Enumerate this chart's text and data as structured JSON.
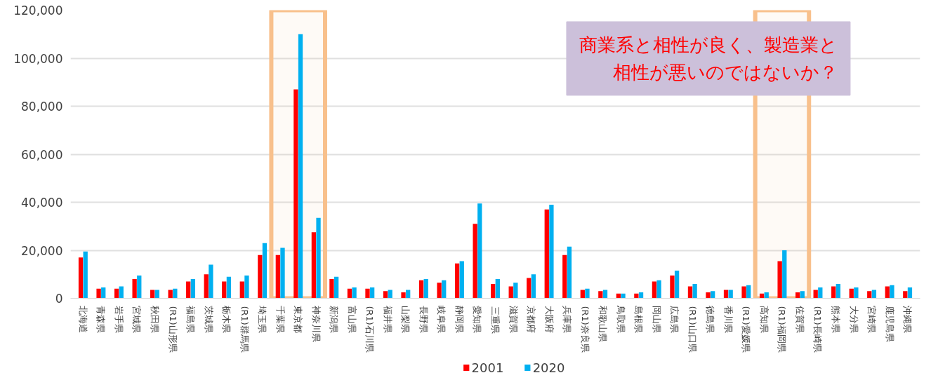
{
  "chart_data": {
    "type": "bar",
    "categories": [
      "北海道",
      "青森県",
      "岩手県",
      "宮城県",
      "秋田県",
      "(R1)山形県",
      "福島県",
      "茨城県",
      "栃木県",
      "(R1)群馬県",
      "埼玉県",
      "千葉県",
      "東京都",
      "神奈川県",
      "新潟県",
      "富山県",
      "(R1)石川県",
      "福井県",
      "山梨県",
      "長野県",
      "岐阜県",
      "静岡県",
      "愛知県",
      "三重県",
      "滋賀県",
      "京都府",
      "大阪府",
      "兵庫県",
      "(R1)奈良県",
      "和歌山県",
      "鳥取県",
      "島根県",
      "岡山県",
      "広島県",
      "(R1)山口県",
      "徳島県",
      "香川県",
      "(R1)愛媛県",
      "高知県",
      "(R1)福岡県",
      "佐賀県",
      "(R1)長崎県",
      "熊本県",
      "大分県",
      "宮崎県",
      "鹿児島県",
      "沖縄県"
    ],
    "series": [
      {
        "name": "2001",
        "color": "#ff0000",
        "values": [
          17000,
          4000,
          4000,
          8000,
          3500,
          3500,
          7000,
          10000,
          7000,
          7000,
          18000,
          18000,
          87000,
          27500,
          8000,
          4000,
          4000,
          3000,
          2500,
          7500,
          6500,
          14500,
          31000,
          6000,
          5000,
          8500,
          37000,
          18000,
          3500,
          3000,
          2000,
          2000,
          7000,
          9500,
          5000,
          2500,
          3500,
          5000,
          2000,
          15500,
          2500,
          3500,
          5000,
          4000,
          3000,
          5000,
          3000
        ]
      },
      {
        "name": "2020",
        "color": "#00b0f0",
        "values": [
          19500,
          4500,
          5000,
          9500,
          3500,
          4000,
          8000,
          14000,
          9000,
          9500,
          23000,
          21000,
          110000,
          33500,
          9000,
          4500,
          4500,
          3500,
          3500,
          8000,
          7500,
          15500,
          39500,
          8000,
          6500,
          10000,
          39000,
          21500,
          4000,
          3500,
          2000,
          2500,
          7500,
          11500,
          6000,
          3000,
          3500,
          5500,
          2500,
          20000,
          3000,
          4500,
          6000,
          4500,
          3500,
          5500,
          4500
        ]
      }
    ],
    "ylim": [
      0,
      120000
    ],
    "yticks": [
      {
        "value": 0,
        "label": "0"
      },
      {
        "value": 20000,
        "label": "20,000"
      },
      {
        "value": 40000,
        "label": "40,000"
      },
      {
        "value": 60000,
        "label": "60,000"
      },
      {
        "value": 80000,
        "label": "80,000"
      },
      {
        "value": 100000,
        "label": "100,000"
      },
      {
        "value": 120000,
        "label": "120,000"
      }
    ],
    "grid": "y",
    "legend": "bottom",
    "bands": [
      {
        "axis": "x",
        "from": "千葉県",
        "to": "神奈川県",
        "color": "#f8c08c"
      },
      {
        "axis": "x",
        "from": "高知県",
        "to": "佐賀県",
        "color": "#f8c08c"
      }
    ],
    "annotations": [
      "商業系と相性が良く、製造業と相性が悪いのではないか？"
    ]
  }
}
